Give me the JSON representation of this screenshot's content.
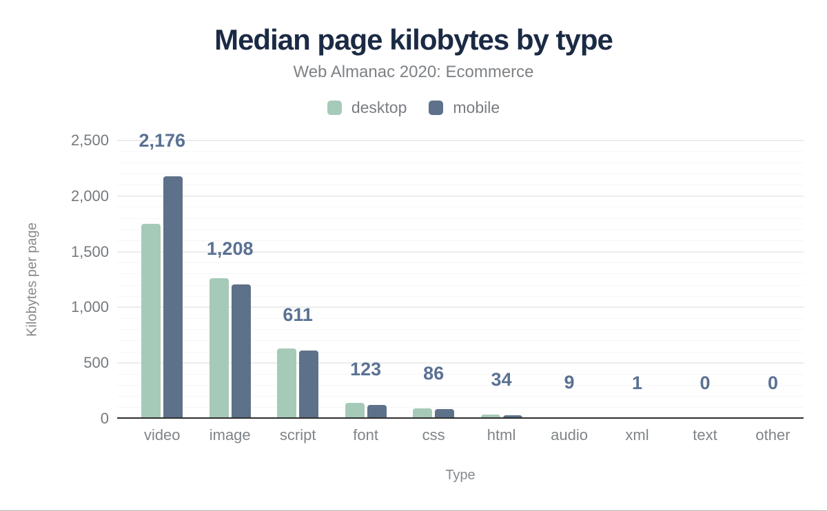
{
  "header": {
    "title": "Median page kilobytes by type",
    "subtitle": "Web Almanac 2020: Ecommerce"
  },
  "legend": {
    "items": [
      {
        "label": "desktop",
        "color": "#a6cab8"
      },
      {
        "label": "mobile",
        "color": "#5e718a"
      }
    ]
  },
  "axes": {
    "x_title": "Type",
    "y_title": "Kilobytes per page"
  },
  "chart_data": {
    "type": "bar",
    "title": "Median page kilobytes by type",
    "subtitle": "Web Almanac 2020: Ecommerce",
    "xlabel": "Type",
    "ylabel": "Kilobytes per page",
    "categories": [
      "video",
      "image",
      "script",
      "font",
      "css",
      "html",
      "audio",
      "xml",
      "text",
      "other"
    ],
    "series": [
      {
        "name": "desktop",
        "color": "#a6cab8",
        "values": [
          1750,
          1262,
          630,
          142,
          90,
          36,
          15,
          2,
          0,
          0
        ]
      },
      {
        "name": "mobile",
        "color": "#5e718a",
        "values": [
          2176,
          1208,
          611,
          123,
          86,
          34,
          9,
          1,
          0,
          0
        ]
      }
    ],
    "value_labels": [
      "2,176",
      "1,208",
      "611",
      "123",
      "86",
      "34",
      "9",
      "1",
      "0",
      "0"
    ],
    "value_labels_series": "mobile",
    "value_label_color": "#5a7193",
    "ylim": [
      0,
      2500
    ],
    "yticks": [
      {
        "value": 0,
        "label": "0"
      },
      {
        "value": 500,
        "label": "500"
      },
      {
        "value": 1000,
        "label": "1,000"
      },
      {
        "value": 1500,
        "label": "1,500"
      },
      {
        "value": 2000,
        "label": "2,000"
      },
      {
        "value": 2500,
        "label": "2,500"
      }
    ],
    "minor_grid_step": 100,
    "major_grid_step": 500,
    "grid": true,
    "legend_position": "top"
  },
  "colors": {
    "title": "#1b2a44",
    "subtitle": "#7d8185",
    "grid_major": "#ececec",
    "grid_minor": "#f6f6f6",
    "axis_line": "#2d2d2d",
    "tick_label": "#75797e",
    "category_label": "#7f8488",
    "axis_title": "#85898d",
    "desktop_bar": "#a6cab8",
    "mobile_bar": "#5e718a"
  }
}
